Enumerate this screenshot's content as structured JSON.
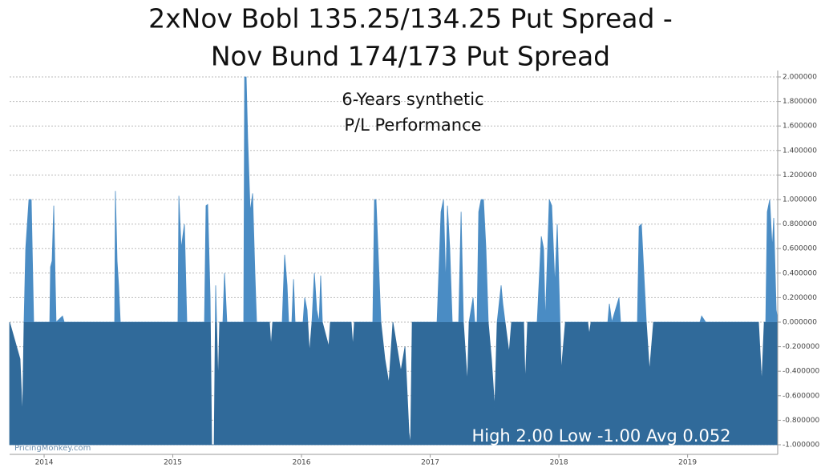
{
  "chart_data": {
    "type": "area",
    "title": [
      "2xNov Bobl 135.25/134.25 Put Spread -",
      "Nov Bund 174/173 Put Spread"
    ],
    "subtitle": [
      "6-Years synthetic",
      "P/L Performance"
    ],
    "annotation": "High 2.00 Low -1.00 Avg 0.052",
    "watermark": "PricingMonkey.com",
    "grid": true,
    "xlim": [
      2013.732,
      2019.7
    ],
    "xticks": [
      2014,
      2015,
      2016,
      2017,
      2018,
      2019
    ],
    "ylim": [
      -1,
      2
    ],
    "yticks": [
      {
        "value": -1,
        "label": "-1.000000"
      },
      {
        "value": -0.8,
        "label": "-0.800000"
      },
      {
        "value": -0.6,
        "label": "-0.600000"
      },
      {
        "value": -0.4,
        "label": "-0.400000"
      },
      {
        "value": -0.2,
        "label": "-0.200000"
      },
      {
        "value": 0,
        "label": "0.000000"
      },
      {
        "value": 0.2,
        "label": "0.200000"
      },
      {
        "value": 0.4,
        "label": "0.400000"
      },
      {
        "value": 0.6,
        "label": "0.600000"
      },
      {
        "value": 0.8,
        "label": "0.800000"
      },
      {
        "value": 1,
        "label": "1.000000"
      },
      {
        "value": 1.2,
        "label": "1.200000"
      },
      {
        "value": 1.4,
        "label": "1.400000"
      },
      {
        "value": 1.6,
        "label": "1.600000"
      },
      {
        "value": 1.8,
        "label": "1.800000"
      },
      {
        "value": 2,
        "label": "2.000000"
      }
    ],
    "color": "#4a8cc4",
    "below_zero_color": "#306a9a",
    "x": [
      2013.732,
      2013.813,
      2013.832,
      2013.844,
      2013.857,
      2013.882,
      2013.9,
      2013.919,
      2014.044,
      2014.05,
      2014.062,
      2014.075,
      2014.087,
      2014.093,
      2014.143,
      2014.156,
      2014.548,
      2014.554,
      2014.567,
      2014.579,
      2014.592,
      2015.04,
      2015.047,
      2015.065,
      2015.09,
      2015.109,
      2015.246,
      2015.258,
      2015.271,
      2015.29,
      2015.302,
      2015.321,
      2015.333,
      2015.352,
      2015.364,
      2015.389,
      2015.402,
      2015.42,
      2015.551,
      2015.558,
      2015.57,
      2015.582,
      2015.601,
      2015.62,
      2015.638,
      2015.651,
      2015.751,
      2015.763,
      2015.776,
      2015.85,
      2015.869,
      2015.888,
      2015.9,
      2015.925,
      2015.938,
      2015.95,
      2016.012,
      2016.025,
      2016.043,
      2016.062,
      2016.081,
      2016.1,
      2016.118,
      2016.137,
      2016.149,
      2016.162,
      2016.212,
      2016.224,
      2016.386,
      2016.399,
      2016.411,
      2016.554,
      2016.567,
      2016.579,
      2016.598,
      2016.617,
      2016.648,
      2016.679,
      2016.71,
      2016.772,
      2016.804,
      2016.822,
      2016.835,
      2016.847,
      2016.86,
      2017.053,
      2017.084,
      2017.103,
      2017.121,
      2017.134,
      2017.152,
      2017.171,
      2017.221,
      2017.24,
      2017.258,
      2017.289,
      2017.302,
      2017.333,
      2017.346,
      2017.364,
      2017.377,
      2017.395,
      2017.414,
      2017.433,
      2017.451,
      2017.476,
      2017.501,
      2017.52,
      2017.551,
      2017.564,
      2017.582,
      2017.613,
      2017.632,
      2017.726,
      2017.738,
      2017.757,
      2017.831,
      2017.863,
      2017.881,
      2017.894,
      2017.925,
      2017.944,
      2017.969,
      2017.987,
      2018.006,
      2018.018,
      2018.05,
      2018.224,
      2018.236,
      2018.249,
      2018.38,
      2018.392,
      2018.411,
      2018.467,
      2018.479,
      2018.61,
      2018.623,
      2018.641,
      2018.66,
      2018.679,
      2018.704,
      2018.735,
      2019.096,
      2019.109,
      2019.14,
      2019.551,
      2019.576,
      2019.595,
      2019.607,
      2019.619,
      2019.638,
      2019.657,
      2019.669,
      2019.688,
      2019.7
    ],
    "values": [
      0,
      -0.3,
      -0.78,
      0,
      0.6,
      1.0,
      1.0,
      0,
      0,
      0.45,
      0.5,
      0.95,
      0.3,
      0,
      0.05,
      0,
      0,
      1.07,
      0.5,
      0.3,
      0,
      0,
      1.03,
      0.6,
      0.8,
      0,
      0,
      0.95,
      0.96,
      0.2,
      -1.0,
      -1.0,
      0.3,
      -0.5,
      0,
      0,
      0.4,
      0,
      0,
      2.0,
      2.0,
      1.5,
      0.9,
      1.05,
      0.4,
      0,
      0,
      -0.2,
      0,
      0,
      0.55,
      0.3,
      0,
      0,
      0.35,
      0,
      0,
      0.2,
      0.1,
      -0.25,
      0,
      0.4,
      0.1,
      0,
      0.38,
      0,
      -0.2,
      0,
      0,
      -0.2,
      0,
      0,
      1.0,
      1.0,
      0.5,
      0,
      -0.3,
      -0.5,
      0,
      -0.4,
      -0.2,
      -0.6,
      -0.9,
      -1.0,
      0,
      0,
      0.9,
      1.0,
      0.3,
      0.95,
      0.6,
      0,
      0,
      0.9,
      0,
      -0.5,
      0,
      0.2,
      0,
      0,
      0.9,
      1.0,
      1.0,
      0.6,
      0,
      -0.3,
      -0.7,
      0,
      0.3,
      0.15,
      0,
      -0.25,
      0,
      0,
      -0.5,
      0,
      0,
      0.7,
      0.6,
      0,
      1.0,
      0.95,
      0.3,
      0.8,
      0.1,
      -0.4,
      0,
      0,
      -0.1,
      0,
      0,
      0.15,
      0,
      0.2,
      0,
      0,
      0.78,
      0.8,
      0.4,
      0,
      -0.4,
      0,
      0,
      0.05,
      0,
      0,
      -0.5,
      0,
      0,
      0.9,
      1.0,
      0.6,
      0.85,
      0.1,
      0.02
    ]
  }
}
